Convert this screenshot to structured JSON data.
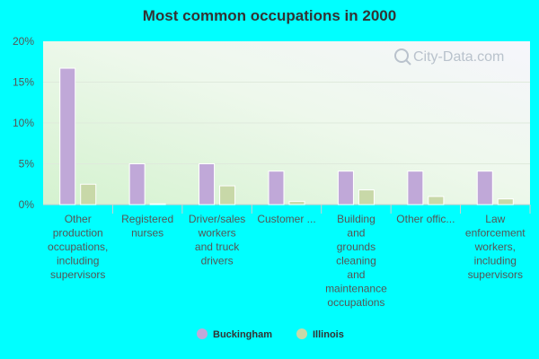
{
  "chart_data": {
    "type": "bar",
    "title": "Most common occupations in 2000",
    "categories": [
      "Other production occupations, including supervisors",
      "Registered nurses",
      "Driver/sales workers and truck drivers",
      "Customer ...",
      "Building and grounds cleaning and maintenance occupations",
      "Other offic...",
      "Law enforcement workers, including supervisors"
    ],
    "category_lines": [
      [
        "Other",
        "production",
        "occupations,",
        "including",
        "supervisors"
      ],
      [
        "Registered",
        "nurses"
      ],
      [
        "Driver/sales",
        "workers",
        "and truck",
        "drivers"
      ],
      [
        "Customer ..."
      ],
      [
        "Building",
        "and",
        "grounds",
        "cleaning",
        "and",
        "maintenance",
        "occupations"
      ],
      [
        "Other offic..."
      ],
      [
        "Law",
        "enforcement",
        "workers,",
        "including",
        "supervisors"
      ]
    ],
    "series": [
      {
        "name": "Buckingham",
        "color": "#c0a8d8",
        "values": [
          16.7,
          5.0,
          5.0,
          4.1,
          4.1,
          4.1,
          4.1
        ]
      },
      {
        "name": "Illinois",
        "color": "#c8d8a8",
        "values": [
          2.5,
          0.1,
          2.3,
          0.4,
          1.8,
          1.0,
          0.7
        ]
      }
    ],
    "yticks": [
      "0%",
      "5%",
      "10%",
      "15%",
      "20%"
    ],
    "ylim": [
      0,
      20
    ],
    "grid": true,
    "legend_position": "bottom-center",
    "watermark": "City-Data.com"
  }
}
